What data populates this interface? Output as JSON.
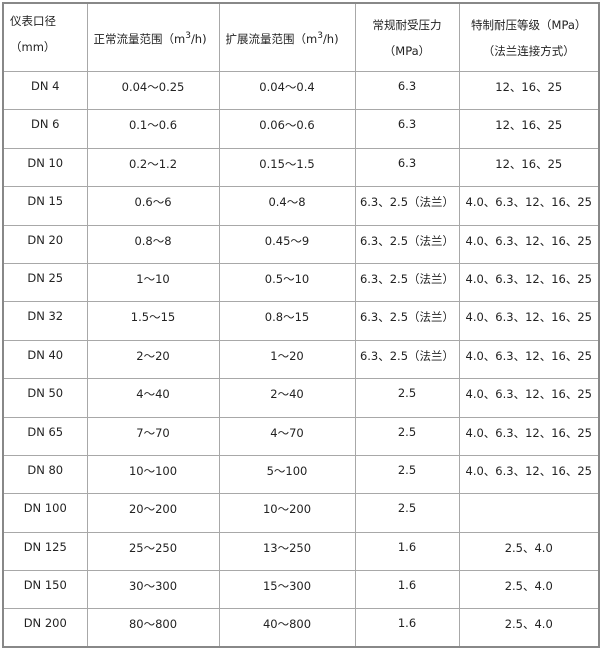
{
  "headers": {
    "diameter": "仪表口径（mm）",
    "normal_flow": "正常流量范围（m",
    "normal_flow_sup": "3",
    "normal_flow_tail": "/h)",
    "extended_flow": "扩展流量范围（m",
    "extended_flow_sup": "3",
    "extended_flow_tail": "/h)",
    "pressure": "常规耐受压力（MPa）",
    "special_pressure": "特制耐压等级（MPa）（法兰连接方式）"
  },
  "rows": [
    [
      "DN 4",
      "0.04～0.25",
      "0.04～0.4",
      "6.3",
      "12、16、25"
    ],
    [
      "DN 6",
      "0.1～0.6",
      "0.06～0.6",
      "6.3",
      "12、16、25"
    ],
    [
      "DN 10",
      "0.2～1.2",
      "0.15～1.5",
      "6.3",
      "12、16、25"
    ],
    [
      "DN 15",
      "0.6～6",
      "0.4～8",
      "6.3、2.5（法兰）",
      "4.0、6.3、12、16、25"
    ],
    [
      "DN 20",
      "0.8～8",
      "0.45～9",
      "6.3、2.5（法兰）",
      "4.0、6.3、12、16、25"
    ],
    [
      "DN 25",
      "1～10",
      "0.5～10",
      "6.3、2.5（法兰）",
      "4.0、6.3、12、16、25"
    ],
    [
      "DN 32",
      "1.5～15",
      "0.8～15",
      "6.3、2.5（法兰）",
      "4.0、6.3、12、16、25"
    ],
    [
      "DN 40",
      "2～20",
      "1～20",
      "6.3、2.5（法兰）",
      "4.0、6.3、12、16、25"
    ],
    [
      "DN 50",
      "4～40",
      "2～40",
      "2.5",
      "4.0、6.3、12、16、25"
    ],
    [
      "DN 65",
      "7～70",
      "4～70",
      "2.5",
      "4.0、6.3、12、16、25"
    ],
    [
      "DN 80",
      "10～100",
      "5～100",
      "2.5",
      "4.0、6.3、12、16、25"
    ],
    [
      "DN 100",
      "20～200",
      "10～200",
      "2.5",
      ""
    ],
    [
      "DN 125",
      "25～250",
      "13～250",
      "1.6",
      "2.5、4.0"
    ],
    [
      "DN 150",
      "30～300",
      "15～300",
      "1.6",
      "2.5、4.0"
    ],
    [
      "DN 200",
      "80～800",
      "40～800",
      "1.6",
      "2.5、4.0"
    ]
  ]
}
